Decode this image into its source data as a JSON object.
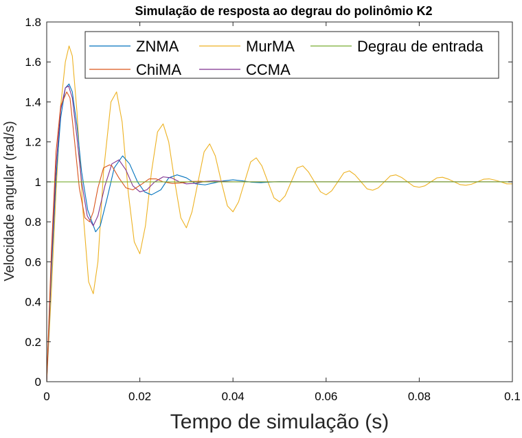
{
  "chart_data": {
    "type": "line",
    "title": "Simulação de resposta ao degrau do polinômio K2",
    "xlabel": "Tempo de simulação (s)",
    "ylabel": "Velocidade angular (rad/s)",
    "xlim": [
      0,
      0.1
    ],
    "ylim": [
      0,
      1.8
    ],
    "x_ticks": [
      0,
      0.02,
      0.04,
      0.06,
      0.08,
      0.1
    ],
    "x_tick_labels": [
      "0",
      "0.02",
      "0.04",
      "0.06",
      "0.08",
      "0.1"
    ],
    "y_ticks": [
      0,
      0.2,
      0.4,
      0.6,
      0.8,
      1,
      1.2,
      1.4,
      1.6,
      1.8
    ],
    "y_tick_labels": [
      "0",
      "0.2",
      "0.4",
      "0.6",
      "0.8",
      "1",
      "1.2",
      "1.4",
      "1.6",
      "1.8"
    ],
    "grid": false,
    "legend_position": "top-right",
    "series": [
      {
        "name": "ZNMA",
        "color": "#0072BD",
        "x": [
          0,
          0.001,
          0.002,
          0.003,
          0.004,
          0.0048,
          0.0055,
          0.0065,
          0.0075,
          0.0088,
          0.0105,
          0.0115,
          0.013,
          0.0145,
          0.0163,
          0.0178,
          0.0195,
          0.021,
          0.0225,
          0.0245,
          0.0262,
          0.028,
          0.03,
          0.032,
          0.034,
          0.036,
          0.038,
          0.04,
          0.042,
          0.044,
          0.046,
          0.048,
          0.05,
          0.055,
          0.06,
          0.07,
          0.08,
          0.09,
          0.1
        ],
        "y": [
          0,
          0.55,
          1.02,
          1.32,
          1.47,
          1.49,
          1.45,
          1.28,
          1.05,
          0.86,
          0.75,
          0.78,
          0.92,
          1.07,
          1.13,
          1.09,
          1.0,
          0.95,
          0.935,
          0.96,
          1.02,
          1.035,
          1.02,
          0.99,
          0.985,
          0.995,
          1.005,
          1.01,
          1.005,
          0.998,
          0.996,
          0.999,
          1.001,
          1.0,
          1.0,
          1.0,
          1.0,
          1.0,
          1.0
        ]
      },
      {
        "name": "ChiMA",
        "color": "#D95319",
        "x": [
          0,
          0.001,
          0.002,
          0.003,
          0.0043,
          0.005,
          0.006,
          0.007,
          0.0082,
          0.0092,
          0.01,
          0.011,
          0.0122,
          0.0135,
          0.014,
          0.0155,
          0.017,
          0.0185,
          0.0205,
          0.022,
          0.0235,
          0.025,
          0.027,
          0.029,
          0.031,
          0.033,
          0.035,
          0.04,
          0.05,
          0.06,
          0.07,
          0.08,
          0.09,
          0.1
        ],
        "y": [
          0,
          0.65,
          1.15,
          1.38,
          1.45,
          1.42,
          1.2,
          0.97,
          0.82,
          0.8,
          0.85,
          0.97,
          1.07,
          1.085,
          1.08,
          1.02,
          0.97,
          0.96,
          0.99,
          1.015,
          1.015,
          1.0,
          0.992,
          0.995,
          1.002,
          1.003,
          1.0,
          1.0,
          1.0,
          1.0,
          1.0,
          1.0,
          1.0,
          1.0
        ]
      },
      {
        "name": "MurMA",
        "color": "#EDB120",
        "x": [
          0,
          0.001,
          0.002,
          0.003,
          0.004,
          0.0048,
          0.0055,
          0.0065,
          0.0078,
          0.009,
          0.01,
          0.011,
          0.0122,
          0.0138,
          0.015,
          0.0162,
          0.0175,
          0.0188,
          0.02,
          0.0212,
          0.0225,
          0.0238,
          0.025,
          0.0262,
          0.0275,
          0.0288,
          0.03,
          0.0312,
          0.0325,
          0.0338,
          0.035,
          0.0362,
          0.0375,
          0.0388,
          0.04,
          0.0412,
          0.0425,
          0.0438,
          0.045,
          0.0462,
          0.0475,
          0.0488,
          0.05,
          0.0512,
          0.0525,
          0.0538,
          0.055,
          0.0562,
          0.0575,
          0.0588,
          0.06,
          0.0612,
          0.0625,
          0.0638,
          0.065,
          0.0662,
          0.0675,
          0.0688,
          0.07,
          0.0712,
          0.0725,
          0.0738,
          0.075,
          0.0762,
          0.0775,
          0.0788,
          0.08,
          0.0812,
          0.0825,
          0.0838,
          0.085,
          0.0862,
          0.0875,
          0.0888,
          0.09,
          0.0912,
          0.0925,
          0.0938,
          0.095,
          0.0962,
          0.0975,
          0.0988,
          0.1
        ],
        "y": [
          0,
          0.45,
          0.95,
          1.38,
          1.6,
          1.68,
          1.63,
          1.35,
          0.85,
          0.5,
          0.44,
          0.6,
          1.05,
          1.4,
          1.45,
          1.3,
          0.95,
          0.7,
          0.64,
          0.78,
          1.05,
          1.25,
          1.29,
          1.2,
          1.0,
          0.82,
          0.77,
          0.85,
          1.0,
          1.15,
          1.19,
          1.13,
          1.0,
          0.88,
          0.85,
          0.9,
          1.0,
          1.1,
          1.12,
          1.08,
          1.0,
          0.92,
          0.9,
          0.93,
          1.0,
          1.07,
          1.08,
          1.05,
          1.0,
          0.95,
          0.935,
          0.955,
          1.0,
          1.045,
          1.055,
          1.035,
          1.0,
          0.965,
          0.958,
          0.97,
          1.0,
          1.03,
          1.035,
          1.022,
          1.0,
          0.978,
          0.973,
          0.98,
          1.0,
          1.02,
          1.023,
          1.014,
          1.0,
          0.986,
          0.983,
          0.988,
          1.0,
          1.013,
          1.015,
          1.009,
          1.0,
          0.99,
          0.99
        ]
      },
      {
        "name": "CCMA",
        "color": "#7E2F8E",
        "x": [
          0,
          0.001,
          0.002,
          0.003,
          0.004,
          0.0047,
          0.0055,
          0.0065,
          0.0075,
          0.0087,
          0.01,
          0.011,
          0.0125,
          0.014,
          0.0155,
          0.017,
          0.0185,
          0.02,
          0.0215,
          0.0232,
          0.025,
          0.0268,
          0.0285,
          0.03,
          0.032,
          0.034,
          0.036,
          0.038,
          0.04,
          0.045,
          0.05,
          0.06,
          0.07,
          0.08,
          0.09,
          0.1
        ],
        "y": [
          0,
          0.6,
          1.08,
          1.36,
          1.47,
          1.48,
          1.42,
          1.22,
          1.0,
          0.83,
          0.78,
          0.83,
          0.98,
          1.09,
          1.11,
          1.06,
          0.98,
          0.95,
          0.96,
          1.0,
          1.025,
          1.02,
          1.0,
          0.99,
          0.993,
          1.002,
          1.005,
          1.002,
          1.0,
          1.0,
          1.0,
          1.0,
          1.0,
          1.0,
          1.0,
          1.0
        ]
      },
      {
        "name": "Degrau de entrada",
        "color": "#77AC30",
        "x": [
          0,
          0,
          0.1
        ],
        "y": [
          0,
          1,
          1
        ]
      }
    ],
    "legend": {
      "rows": [
        [
          "ZNMA",
          "MurMA",
          "Degrau de entrada"
        ],
        [
          "ChiMA",
          "CCMA"
        ]
      ]
    }
  }
}
